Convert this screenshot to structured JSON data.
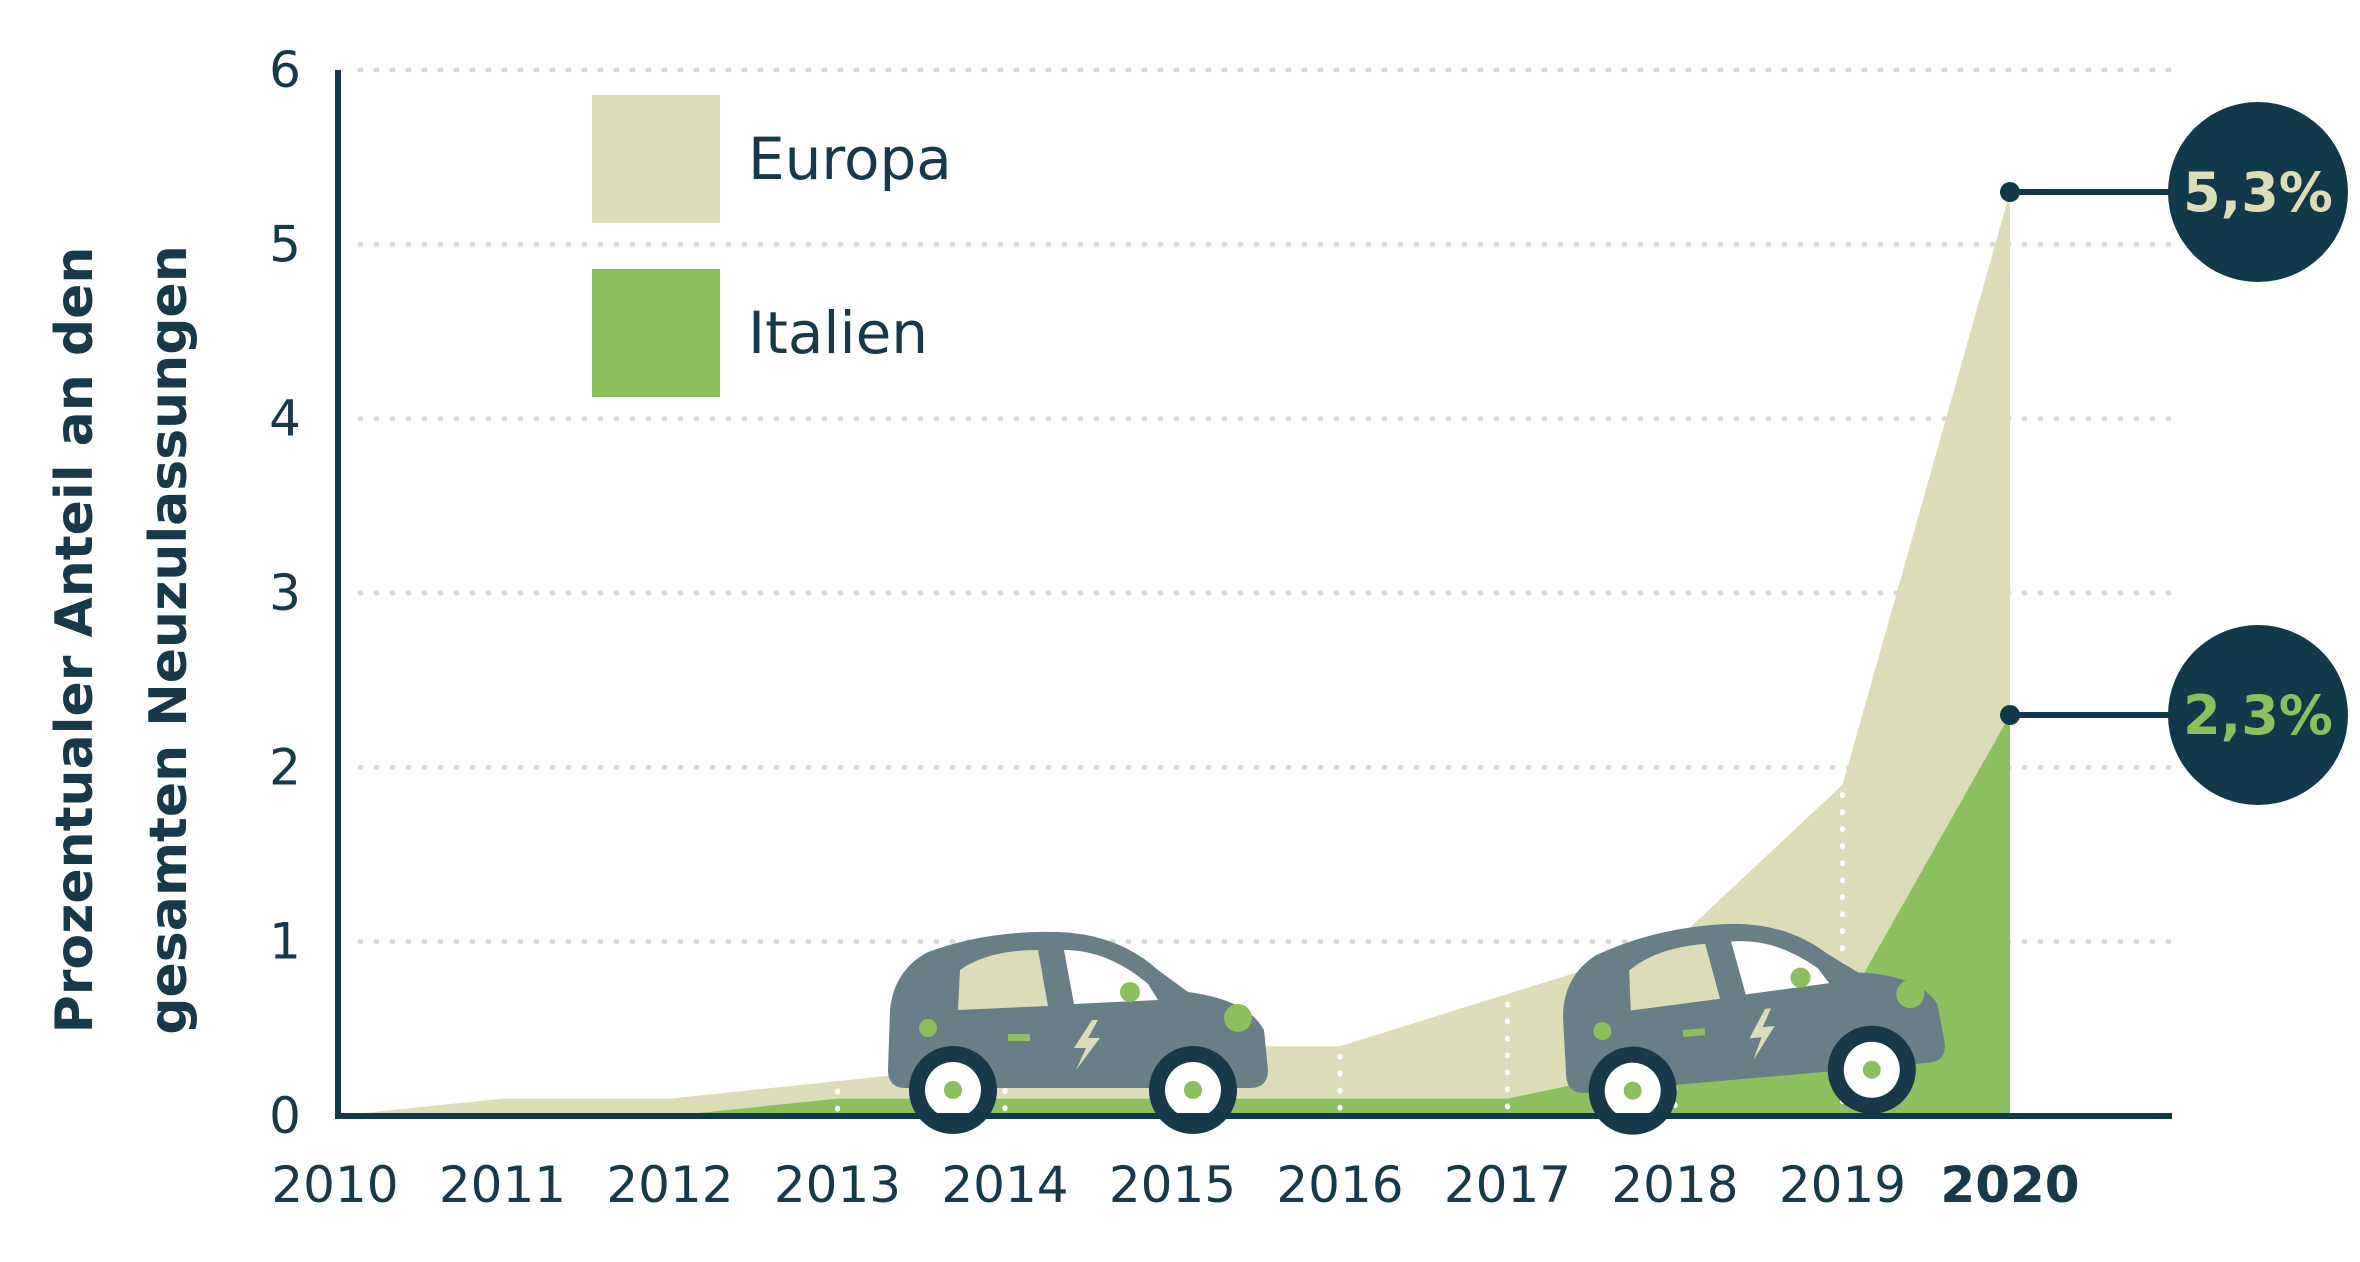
{
  "chart_data": {
    "type": "area",
    "x": [
      "2010",
      "2011",
      "2012",
      "2013",
      "2014",
      "2015",
      "2016",
      "2017",
      "2018",
      "2019",
      "2020"
    ],
    "highlight_x": "2020",
    "series": [
      {
        "name": "Europa",
        "color": "#dcddb8",
        "values": [
          0.0,
          0.1,
          0.1,
          0.2,
          0.3,
          0.4,
          0.4,
          0.7,
          1.0,
          1.9,
          5.3
        ]
      },
      {
        "name": "Italien",
        "color": "#8cbf5e",
        "values": [
          0.0,
          0.0,
          0.0,
          0.1,
          0.1,
          0.1,
          0.1,
          0.1,
          0.3,
          0.6,
          2.3
        ]
      }
    ],
    "ylabel_lines": [
      "Prozentualer Anteil an den",
      "gesamten Neuzulassungen"
    ],
    "yticks": [
      "0",
      "1",
      "2",
      "3",
      "4",
      "5",
      "6"
    ],
    "ylim": [
      0,
      6
    ],
    "grid": "dotted-horizontal",
    "legend_position": "top-left",
    "callouts": [
      {
        "label": "5,3%",
        "value": 5.3,
        "text_color": "#dcddb8",
        "bg_color": "#12394a"
      },
      {
        "label": "2,3%",
        "value": 2.3,
        "text_color": "#8cbf5e",
        "bg_color": "#12394a"
      }
    ],
    "axis_color": "#12394a",
    "decorations": [
      "car-icon",
      "car-icon"
    ]
  }
}
